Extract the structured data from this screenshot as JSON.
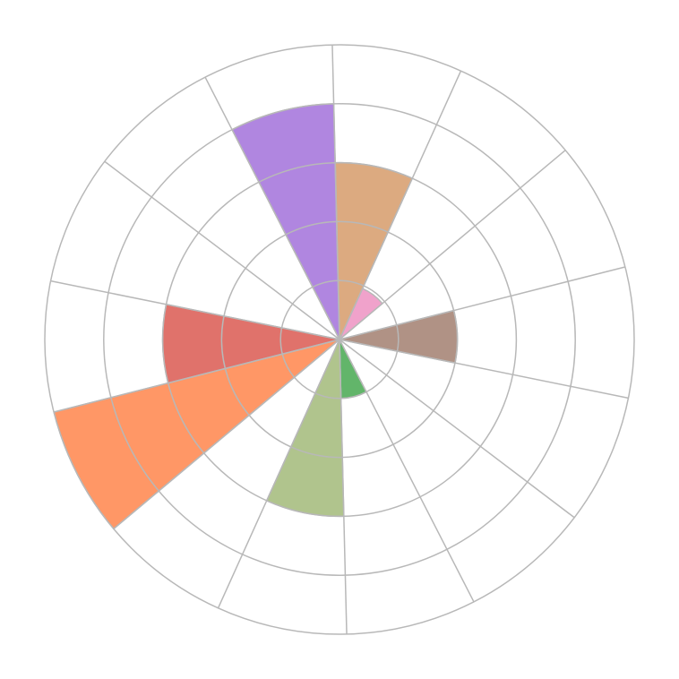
{
  "chart_data": {
    "type": "polar-area",
    "title": "",
    "rlim": [
      0,
      5
    ],
    "r_ticks": [
      1,
      2,
      3,
      4,
      5
    ],
    "grid": true,
    "sector_count": 14,
    "start_angle_deg": -1.4,
    "direction": "clockwise",
    "grid_color": "#b8b8b8",
    "values": [
      3,
      0.95,
      0,
      2,
      0,
      0,
      1,
      3,
      0,
      5,
      3,
      0,
      0,
      4
    ],
    "colors": [
      "#dcaa80",
      "#f0a2cb",
      null,
      "#b09285",
      null,
      null,
      "#62b56a",
      "#b0c48d",
      null,
      "#ff9766",
      "#e0726b",
      null,
      null,
      "#b086e0"
    ]
  }
}
